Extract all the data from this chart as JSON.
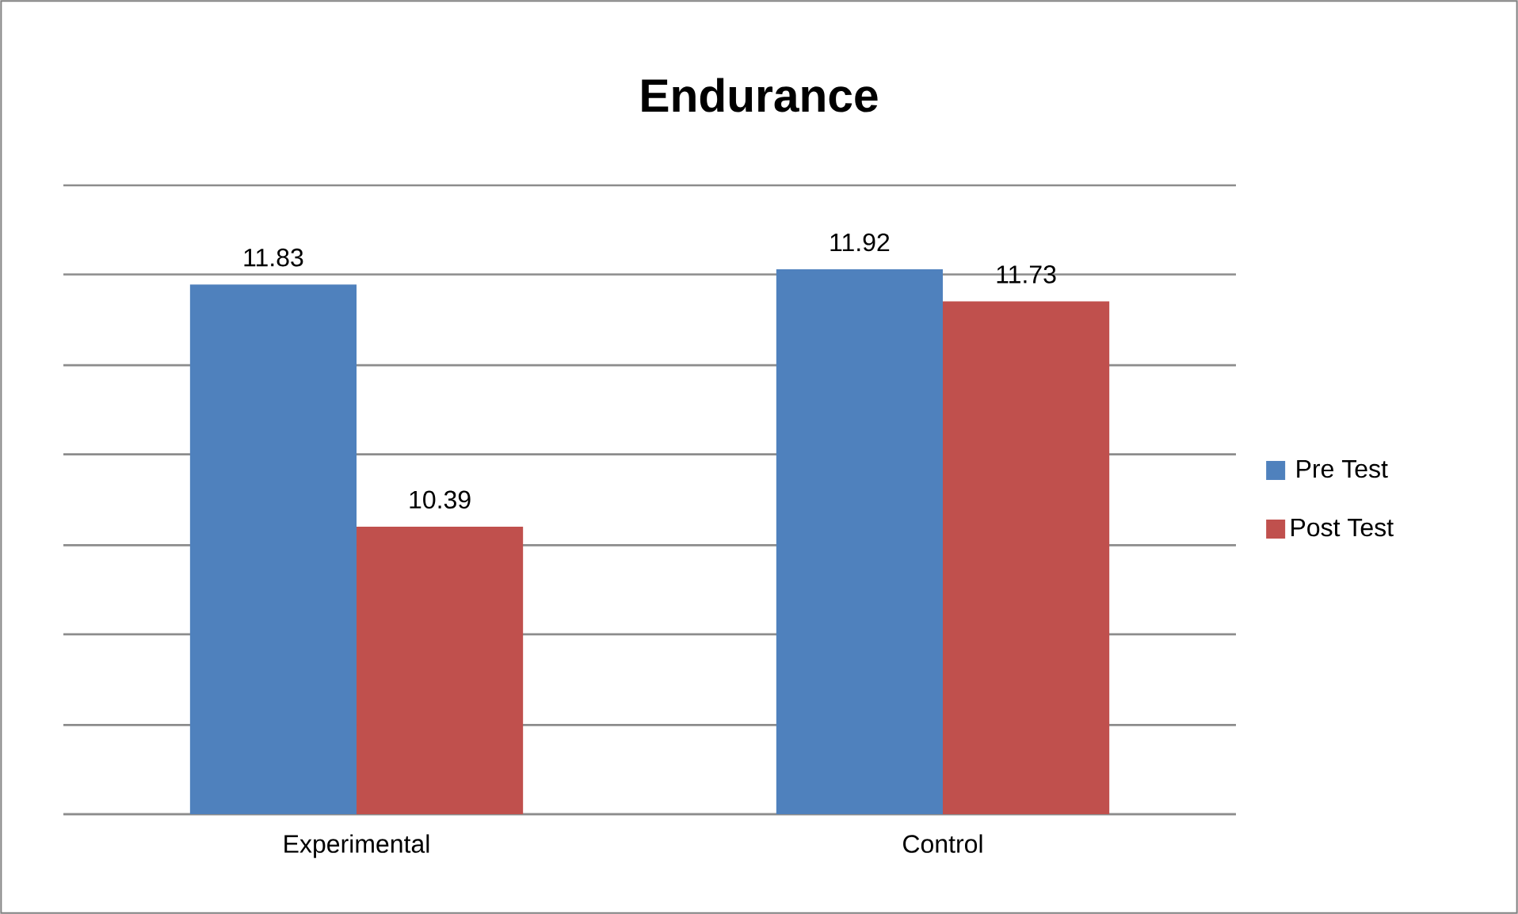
{
  "chart_data": {
    "type": "bar",
    "title": "Endurance",
    "categories": [
      "Experimental",
      "Control"
    ],
    "series": [
      {
        "name": "Pre Test",
        "color": "#4f81bd",
        "values": [
          11.83,
          11.92
        ]
      },
      {
        "name": "Post Test",
        "color": "#c0504d",
        "values": [
          10.39,
          11.73
        ]
      }
    ],
    "ylim": [
      8.68,
      12.42
    ],
    "yticks": [
      {
        "value": 8.68,
        "label": null
      },
      {
        "value": 9.21,
        "label": null
      },
      {
        "value": 9.75,
        "label": null
      },
      {
        "value": 10.28,
        "label": null
      },
      {
        "value": 10.82,
        "label": null
      },
      {
        "value": 11.35,
        "label": null
      },
      {
        "value": 11.89,
        "label": null
      },
      {
        "value": 12.42,
        "label": null
      }
    ],
    "tick_labels": "x",
    "grid": "y",
    "legend": "right",
    "data_labels": true
  }
}
